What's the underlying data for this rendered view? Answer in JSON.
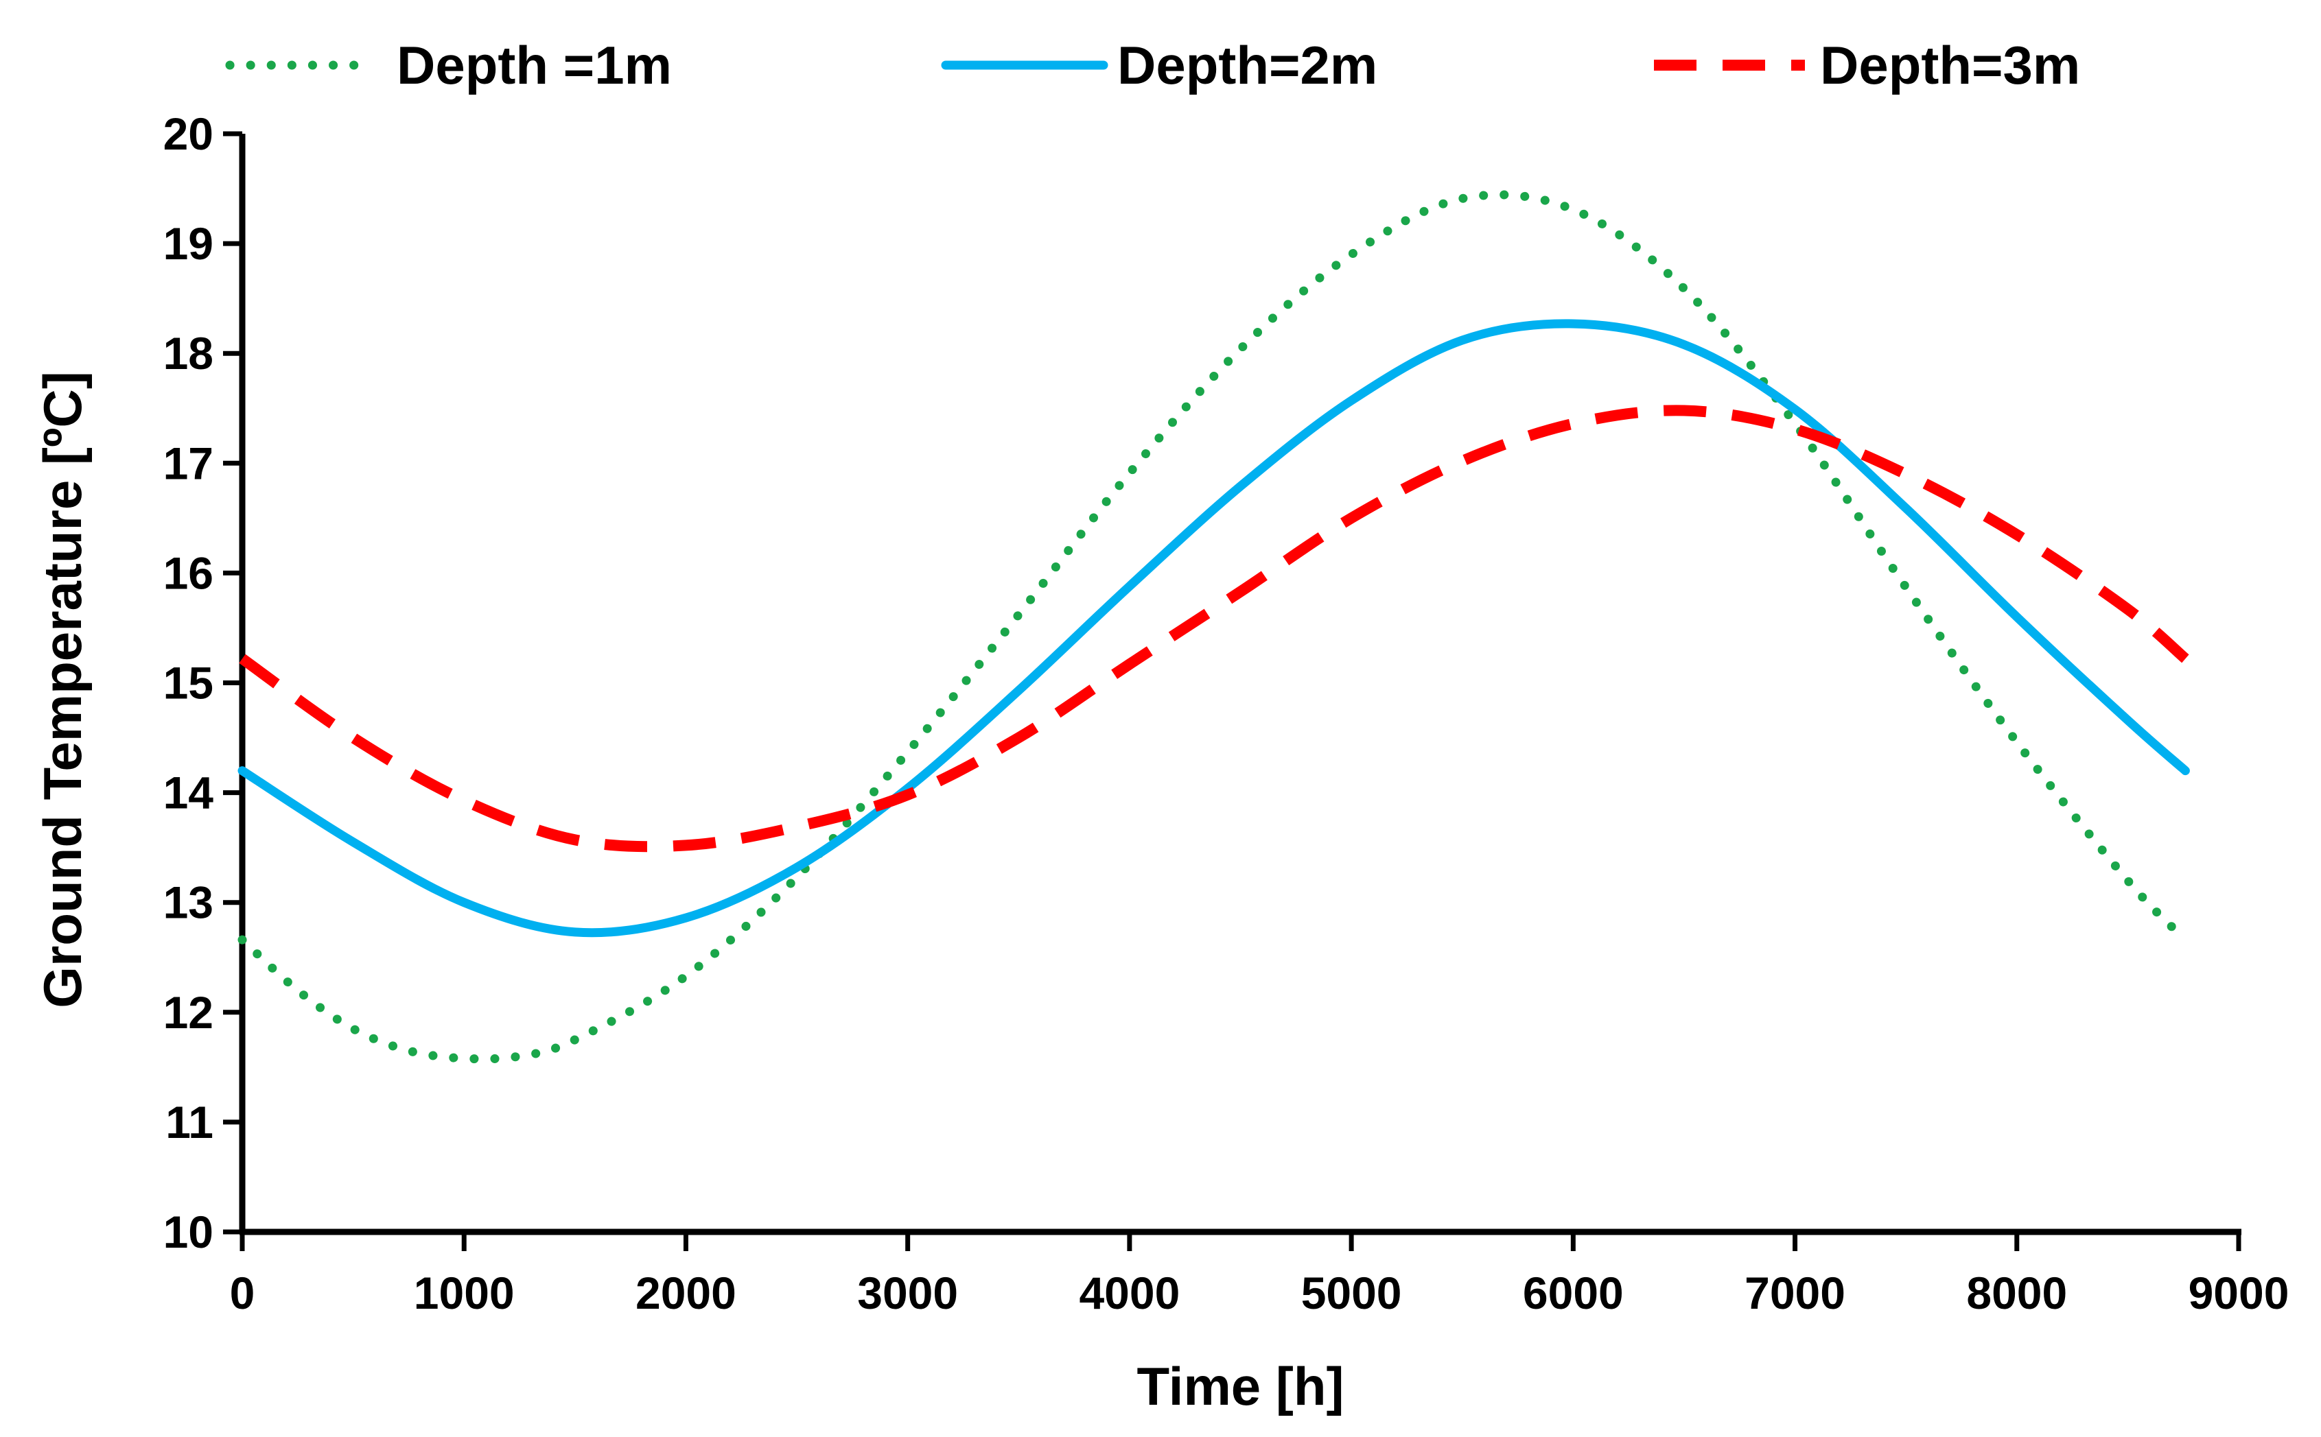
{
  "chart_data": {
    "type": "line",
    "title": "",
    "xlabel": "Time [h]",
    "ylabel": "Ground Temperature [ºC]",
    "xlim": [
      0,
      9000
    ],
    "ylim": [
      10,
      20
    ],
    "xticks": [
      0,
      1000,
      2000,
      3000,
      4000,
      5000,
      6000,
      7000,
      8000,
      9000
    ],
    "yticks": [
      10,
      11,
      12,
      13,
      14,
      15,
      16,
      17,
      18,
      19,
      20
    ],
    "grid": false,
    "legend_position": "top",
    "series": [
      {
        "name": "Depth =1m",
        "color": "#1aa64a",
        "style": "dotted",
        "x": [
          0,
          250,
          500,
          750,
          1000,
          1250,
          1500,
          2000,
          2500,
          3000,
          3500,
          4000,
          4500,
          5000,
          5500,
          6000,
          6500,
          7000,
          7500,
          8000,
          8500,
          8760
        ],
        "y": [
          12.66,
          12.2,
          11.85,
          11.65,
          11.58,
          11.6,
          11.75,
          12.33,
          13.23,
          14.37,
          15.62,
          16.91,
          18.04,
          18.9,
          19.41,
          19.31,
          18.59,
          17.36,
          15.87,
          14.46,
          13.2,
          12.66
        ]
      },
      {
        "name": "Depth=2m",
        "color": "#00b0f0",
        "style": "solid",
        "x": [
          0,
          500,
          1000,
          1500,
          2000,
          2500,
          3000,
          3500,
          4000,
          4500,
          5000,
          5500,
          6000,
          6500,
          7000,
          7500,
          8000,
          8500,
          8760
        ],
        "y": [
          14.2,
          13.55,
          13.0,
          12.73,
          12.86,
          13.32,
          14.04,
          14.93,
          15.88,
          16.79,
          17.57,
          18.12,
          18.27,
          18.08,
          17.49,
          16.59,
          15.6,
          14.66,
          14.2
        ]
      },
      {
        "name": "Depth=3m",
        "color": "#ff0000",
        "style": "dashed",
        "x": [
          0,
          500,
          1000,
          1500,
          2000,
          2500,
          3000,
          3500,
          4000,
          4500,
          5000,
          5500,
          6000,
          6500,
          7000,
          7500,
          8000,
          8500,
          8760
        ],
        "y": [
          15.22,
          14.5,
          13.93,
          13.57,
          13.52,
          13.69,
          13.98,
          14.5,
          15.17,
          15.83,
          16.5,
          17.02,
          17.36,
          17.48,
          17.31,
          16.9,
          16.35,
          15.67,
          15.22
        ]
      }
    ]
  }
}
